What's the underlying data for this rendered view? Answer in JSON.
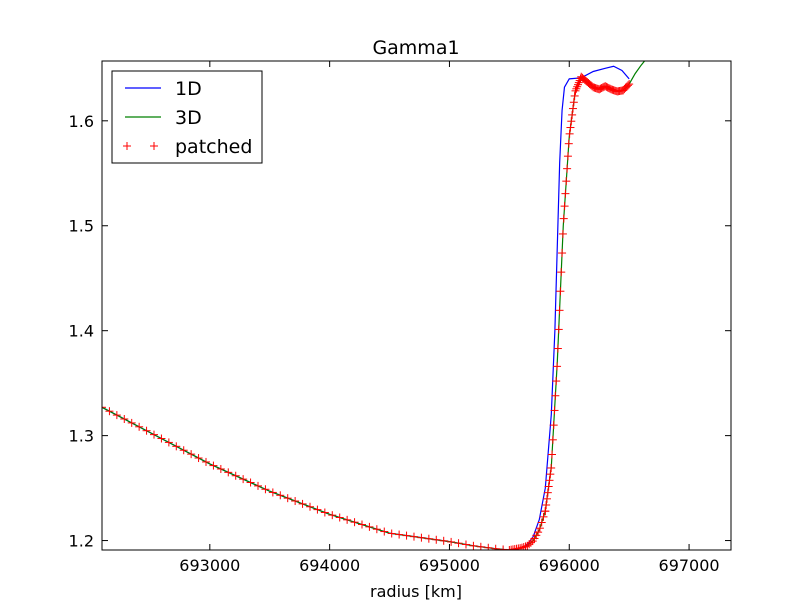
{
  "chart_data": {
    "type": "line",
    "title": "Gamma1",
    "xlabel": "radius [km]",
    "ylabel": "",
    "xlim": [
      692100,
      697350
    ],
    "ylim": [
      1.191,
      1.657
    ],
    "xticks": [
      693000,
      694000,
      695000,
      696000,
      697000
    ],
    "xtick_labels": [
      "693000",
      "694000",
      "695000",
      "696000",
      "697000"
    ],
    "yticks": [
      1.2,
      1.3,
      1.4,
      1.5,
      1.6
    ],
    "ytick_labels": [
      "1.2",
      "1.3",
      "1.4",
      "1.5",
      "1.6"
    ],
    "grid": false,
    "legend_position": "top-left",
    "series": [
      {
        "name": "1D",
        "color": "#0000ff",
        "style": "line",
        "x": [
          692100,
          692500,
          693000,
          693500,
          694000,
          694500,
          695000,
          695200,
          695400,
          695500,
          695600,
          695650,
          695700,
          695750,
          695800,
          695850,
          695880,
          695900,
          695920,
          695940,
          695960,
          696000,
          696100,
          696200,
          696300,
          696370,
          696440,
          696500
        ],
        "y": [
          1.327,
          1.303,
          1.273,
          1.247,
          1.225,
          1.207,
          1.199,
          1.195,
          1.192,
          1.191,
          1.193,
          1.196,
          1.204,
          1.22,
          1.25,
          1.32,
          1.4,
          1.48,
          1.56,
          1.61,
          1.632,
          1.64,
          1.641,
          1.647,
          1.65,
          1.652,
          1.648,
          1.64
        ]
      },
      {
        "name": "3D",
        "color": "#008000",
        "style": "line",
        "x": [
          692100,
          692500,
          693000,
          693500,
          694000,
          694500,
          695000,
          695200,
          695400,
          695500,
          695600,
          695650,
          695700,
          695750,
          695800,
          695850,
          695900,
          695950,
          696000,
          696050,
          696100,
          696150,
          696200,
          696250,
          696300,
          696350,
          696400,
          696450,
          696500,
          696550,
          696600,
          696650
        ],
        "y": [
          1.327,
          1.303,
          1.273,
          1.247,
          1.225,
          1.207,
          1.199,
          1.195,
          1.192,
          1.191,
          1.193,
          1.195,
          1.2,
          1.21,
          1.228,
          1.27,
          1.37,
          1.5,
          1.585,
          1.628,
          1.642,
          1.637,
          1.632,
          1.63,
          1.633,
          1.63,
          1.628,
          1.629,
          1.635,
          1.645,
          1.653,
          1.66
        ]
      },
      {
        "name": "patched",
        "color": "#ff0000",
        "style": "markers",
        "x": [
          692100,
          692500,
          693000,
          693500,
          694000,
          694500,
          695000,
          695200,
          695400,
          695500,
          695600,
          695650,
          695700,
          695750,
          695800,
          695850,
          695900,
          695950,
          696000,
          696050,
          696100,
          696150,
          696200,
          696250,
          696300,
          696350,
          696400,
          696450,
          696500
        ],
        "y": [
          1.327,
          1.303,
          1.273,
          1.247,
          1.225,
          1.207,
          1.199,
          1.195,
          1.192,
          1.191,
          1.193,
          1.195,
          1.2,
          1.21,
          1.228,
          1.27,
          1.37,
          1.5,
          1.585,
          1.628,
          1.642,
          1.637,
          1.632,
          1.63,
          1.633,
          1.63,
          1.628,
          1.629,
          1.635
        ]
      }
    ]
  }
}
